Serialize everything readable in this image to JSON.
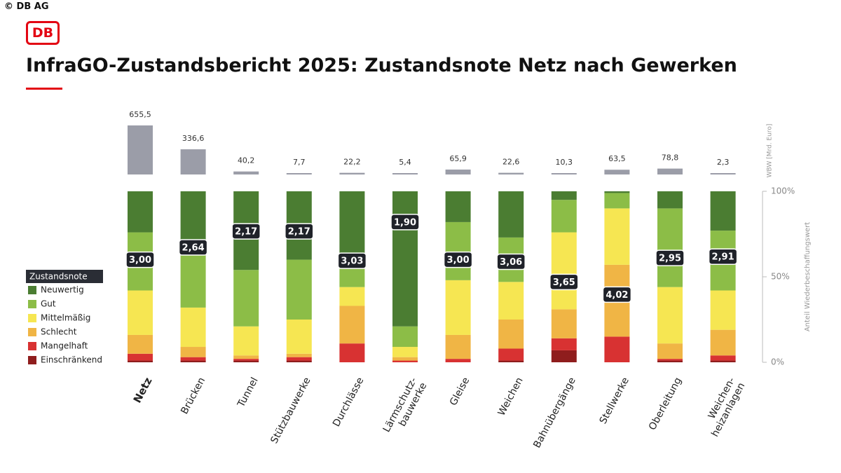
{
  "copyright": "© DB AG",
  "logo": "DB",
  "chart_data": {
    "type": "stacked-bar",
    "title": "InfraGO-Zustandsbericht 2025: Zustandsnote Netz nach Gewerken",
    "categories": [
      "Netz",
      "Brücken",
      "Tunnel",
      "Stützbauwerke",
      "Durchlässe",
      "Lärmschutz-\nbauwerke",
      "Gleise",
      "Weichen",
      "Bahnübergänge",
      "Stellwerke",
      "Oberleitung",
      "Weichen-\nheizanlagen"
    ],
    "legend_title": "Zustandsnote",
    "series": [
      {
        "name": "Neuwertig",
        "color": "#4b7d32",
        "values": [
          24,
          30,
          46,
          40,
          36,
          79,
          18,
          27,
          5,
          1,
          10,
          23
        ]
      },
      {
        "name": "Gut",
        "color": "#8cbd47",
        "values": [
          34,
          38,
          33,
          35,
          20,
          12,
          34,
          26,
          19,
          9,
          46,
          35
        ]
      },
      {
        "name": "Mittelmäßig",
        "color": "#f6e652",
        "values": [
          26,
          23,
          17,
          20,
          11,
          6,
          32,
          22,
          45,
          33,
          33,
          23
        ]
      },
      {
        "name": "Schlecht",
        "color": "#f0b545",
        "values": [
          11,
          6,
          2,
          2,
          22,
          2,
          14,
          17,
          17,
          42,
          9,
          15
        ]
      },
      {
        "name": "Mangelhaft",
        "color": "#d83232",
        "values": [
          4,
          2,
          1,
          2,
          11,
          1,
          2,
          7,
          7,
          15,
          1,
          3
        ]
      },
      {
        "name": "Einschränkend",
        "color": "#8f1d1d",
        "values": [
          1,
          1,
          1,
          1,
          0,
          0,
          0,
          1,
          7,
          0,
          1,
          1
        ]
      }
    ],
    "ylim": [
      0,
      100
    ],
    "yticks": [
      {
        "value": 0,
        "label": "0%"
      },
      {
        "value": 50,
        "label": "50%"
      },
      {
        "value": 100,
        "label": "100%"
      }
    ],
    "ylabel": "Anteil Wiederbeschaffungswert",
    "grades": {
      "scale": [
        1,
        6
      ],
      "values": [
        3.0,
        2.64,
        2.17,
        2.17,
        3.03,
        1.9,
        3.0,
        3.06,
        3.65,
        4.02,
        2.95,
        2.91
      ],
      "value_labels": [
        "3,00",
        "2,64",
        "2,17",
        "2,17",
        "3,03",
        "1,90",
        "3,00",
        "3,06",
        "3,65",
        "4,02",
        "2,95",
        "2,91"
      ]
    },
    "wbw": {
      "name": "WBW [Mrd. Euro]",
      "color": "#9b9da8",
      "values": [
        655.5,
        336.6,
        40.2,
        7.7,
        22.2,
        5.4,
        65.9,
        22.6,
        10.3,
        63.5,
        78.8,
        2.3
      ],
      "value_labels": [
        "655,5",
        "336,6",
        "40,2",
        "7,7",
        "22,2",
        "5,4",
        "65,9",
        "22,6",
        "10,3",
        "63,5",
        "78,8",
        "2,3"
      ]
    }
  }
}
